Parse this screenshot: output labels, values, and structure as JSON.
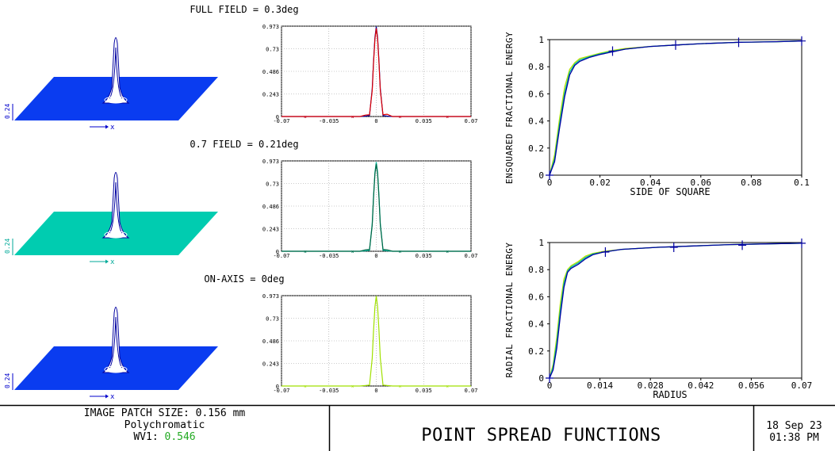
{
  "psf_rows": [
    {
      "field_label": "FULL FIELD = 0.3deg",
      "surface_color": "#0a3cf0",
      "surface_axis_label": "0.24",
      "surface_x_label": "x",
      "axis_color": "#0000cc",
      "chart_data": {
        "type": "line",
        "xlim": [
          -0.07,
          0.07
        ],
        "ylim": [
          0,
          0.973
        ],
        "xticks": [
          "-0.07",
          "-0.035",
          "0",
          "0.035",
          "0.07"
        ],
        "yticks": [
          "0.973",
          "0.73",
          "0.486",
          "0.243",
          "0"
        ],
        "series": [
          {
            "color": "#0000a0",
            "x": [
              -0.07,
              -0.012,
              -0.008,
              -0.005,
              -0.003,
              -0.002,
              -0.001,
              0,
              0.001,
              0.002,
              0.003,
              0.005,
              0.008,
              0.012,
              0.07
            ],
            "y": [
              0,
              0,
              0.004,
              0.01,
              0.3,
              0.6,
              0.85,
              0.97,
              0.85,
              0.6,
              0.3,
              0.01,
              0.004,
              0,
              0
            ]
          },
          {
            "color": "#e00000",
            "x": [
              -0.07,
              -0.012,
              -0.008,
              -0.005,
              -0.003,
              -0.002,
              -0.001,
              0,
              0.001,
              0.002,
              0.003,
              0.005,
              0.008,
              0.012,
              0.07
            ],
            "y": [
              0,
              0,
              0.015,
              0.02,
              0.28,
              0.58,
              0.83,
              0.95,
              0.83,
              0.58,
              0.28,
              0.02,
              0.025,
              0,
              0
            ]
          }
        ]
      }
    },
    {
      "field_label": "0.7 FIELD = 0.21deg",
      "surface_color": "#00ccb0",
      "surface_axis_label": "0.24",
      "surface_x_label": "x",
      "axis_color": "#00aa99",
      "chart_data": {
        "type": "line",
        "xlim": [
          -0.07,
          0.07
        ],
        "ylim": [
          0,
          0.973
        ],
        "xticks": [
          "-0.07",
          "-0.035",
          "0",
          "0.035",
          "0.07"
        ],
        "yticks": [
          "0.973",
          "0.73",
          "0.486",
          "0.243",
          "0"
        ],
        "series": [
          {
            "color": "#00b8a0",
            "x": [
              -0.07,
              -0.012,
              -0.008,
              -0.005,
              -0.003,
              -0.002,
              -0.001,
              0,
              0.001,
              0.002,
              0.003,
              0.005,
              0.008,
              0.012,
              0.07
            ],
            "y": [
              0,
              0,
              0.005,
              0.01,
              0.3,
              0.6,
              0.85,
              0.96,
              0.85,
              0.6,
              0.3,
              0.01,
              0.005,
              0,
              0
            ]
          },
          {
            "color": "#006644",
            "x": [
              -0.07,
              -0.012,
              -0.008,
              -0.005,
              -0.003,
              -0.002,
              -0.001,
              0,
              0.001,
              0.002,
              0.003,
              0.005,
              0.008,
              0.012,
              0.07
            ],
            "y": [
              0,
              0,
              0.015,
              0.02,
              0.28,
              0.58,
              0.83,
              0.94,
              0.83,
              0.58,
              0.28,
              0.02,
              0.015,
              0,
              0
            ]
          }
        ]
      }
    },
    {
      "field_label": "ON-AXIS = 0deg",
      "surface_color": "#0a3cf0",
      "surface_axis_label": "0.24",
      "surface_x_label": "x",
      "axis_color": "#0000cc",
      "chart_data": {
        "type": "line",
        "xlim": [
          -0.07,
          0.07
        ],
        "ylim": [
          0,
          0.973
        ],
        "xticks": [
          "-0.07",
          "-0.035",
          "0",
          "0.035",
          "0.07"
        ],
        "yticks": [
          "0.973",
          "0.73",
          "0.486",
          "0.243",
          "0"
        ],
        "series": [
          {
            "color": "#a0e000",
            "x": [
              -0.07,
              -0.012,
              -0.008,
              -0.005,
              -0.003,
              -0.002,
              -0.001,
              0,
              0.001,
              0.002,
              0.003,
              0.005,
              0.008,
              0.012,
              0.07
            ],
            "y": [
              0,
              0,
              0.005,
              0.01,
              0.3,
              0.6,
              0.85,
              0.97,
              0.85,
              0.6,
              0.3,
              0.01,
              0.005,
              0,
              0
            ]
          }
        ]
      }
    }
  ],
  "energy_charts": [
    {
      "chart_data": {
        "type": "line",
        "ylabel": "ENSQUARED FRACTIONAL ENERGY",
        "xlabel": "SIDE OF SQUARE",
        "xlim": [
          0,
          0.1
        ],
        "ylim": [
          0,
          1
        ],
        "xticks": [
          "0",
          "0.02",
          "0.04",
          "0.06",
          "0.08",
          "0.1"
        ],
        "yticks": [
          "1",
          "0.8",
          "0.6",
          "0.4",
          "0.2",
          "0"
        ],
        "series": [
          {
            "color": "#b8e000",
            "x": [
              0,
              0.002,
              0.004,
              0.006,
              0.008,
              0.01,
              0.012,
              0.016,
              0.02,
              0.025,
              0.03,
              0.04,
              0.05,
              0.06,
              0.075,
              0.09,
              0.1
            ],
            "y": [
              0,
              0.15,
              0.42,
              0.65,
              0.78,
              0.83,
              0.86,
              0.88,
              0.9,
              0.92,
              0.935,
              0.95,
              0.96,
              0.97,
              0.98,
              0.985,
              0.99
            ]
          },
          {
            "color": "#00b8a0",
            "x": [
              0,
              0.002,
              0.004,
              0.006,
              0.008,
              0.01,
              0.012,
              0.016,
              0.02,
              0.025,
              0.03,
              0.04,
              0.05,
              0.06,
              0.075,
              0.09,
              0.1
            ],
            "y": [
              0,
              0.12,
              0.38,
              0.61,
              0.76,
              0.82,
              0.85,
              0.875,
              0.895,
              0.915,
              0.93,
              0.95,
              0.96,
              0.97,
              0.98,
              0.985,
              0.99
            ]
          },
          {
            "color": "#0000a0",
            "x": [
              0,
              0.002,
              0.004,
              0.006,
              0.008,
              0.01,
              0.012,
              0.016,
              0.02,
              0.025,
              0.03,
              0.04,
              0.05,
              0.06,
              0.075,
              0.09,
              0.1
            ],
            "y": [
              0,
              0.1,
              0.35,
              0.58,
              0.74,
              0.81,
              0.84,
              0.87,
              0.89,
              0.91,
              0.93,
              0.95,
              0.96,
              0.97,
              0.98,
              0.985,
              0.99
            ]
          }
        ],
        "markers_x": [
          0,
          0.025,
          0.05,
          0.075,
          0.1
        ],
        "markers_y": [
          0,
          0.915,
          0.96,
          0.98,
          0.99
        ]
      }
    },
    {
      "chart_data": {
        "type": "line",
        "ylabel": "RADIAL FRACTIONAL ENERGY",
        "xlabel": "RADIUS",
        "xlim": [
          0,
          0.07
        ],
        "ylim": [
          0,
          1
        ],
        "xticks": [
          "0",
          "0.014",
          "0.028",
          "0.042",
          "0.056",
          "0.07"
        ],
        "yticks": [
          "1",
          "0.8",
          "0.6",
          "0.4",
          "0.2",
          "0"
        ],
        "series": [
          {
            "color": "#b8e000",
            "x": [
              0,
              0.001,
              0.002,
              0.003,
              0.004,
              0.005,
              0.006,
              0.008,
              0.01,
              0.012,
              0.015,
              0.02,
              0.03,
              0.04,
              0.05,
              0.06,
              0.07
            ],
            "y": [
              0,
              0.1,
              0.3,
              0.55,
              0.73,
              0.8,
              0.83,
              0.86,
              0.9,
              0.92,
              0.935,
              0.95,
              0.965,
              0.975,
              0.985,
              0.99,
              0.995
            ]
          },
          {
            "color": "#00b8a0",
            "x": [
              0,
              0.001,
              0.002,
              0.003,
              0.004,
              0.005,
              0.006,
              0.008,
              0.01,
              0.012,
              0.015,
              0.02,
              0.03,
              0.04,
              0.05,
              0.06,
              0.07
            ],
            "y": [
              0,
              0.08,
              0.26,
              0.5,
              0.7,
              0.79,
              0.82,
              0.85,
              0.89,
              0.915,
              0.93,
              0.95,
              0.965,
              0.975,
              0.985,
              0.99,
              0.995
            ]
          },
          {
            "color": "#0000a0",
            "x": [
              0,
              0.001,
              0.002,
              0.003,
              0.004,
              0.005,
              0.006,
              0.008,
              0.01,
              0.012,
              0.015,
              0.02,
              0.03,
              0.04,
              0.05,
              0.06,
              0.07
            ],
            "y": [
              0,
              0.06,
              0.22,
              0.46,
              0.67,
              0.78,
              0.81,
              0.84,
              0.88,
              0.91,
              0.93,
              0.95,
              0.965,
              0.975,
              0.985,
              0.99,
              0.995
            ]
          }
        ],
        "markers_x": [
          0,
          0.0155,
          0.0345,
          0.0535,
          0.07
        ],
        "markers_y": [
          0,
          0.93,
          0.965,
          0.98,
          0.995
        ]
      }
    }
  ],
  "footer": {
    "patch_size": "IMAGE PATCH SIZE: 0.156 mm",
    "spectrum": "Polychromatic",
    "wv_label": "WV1:",
    "wv_value": "0.546",
    "wv_value_color": "#22aa22",
    "title": "POINT SPREAD FUNCTIONS",
    "date": "18 Sep 23",
    "time": "01:38 PM"
  }
}
